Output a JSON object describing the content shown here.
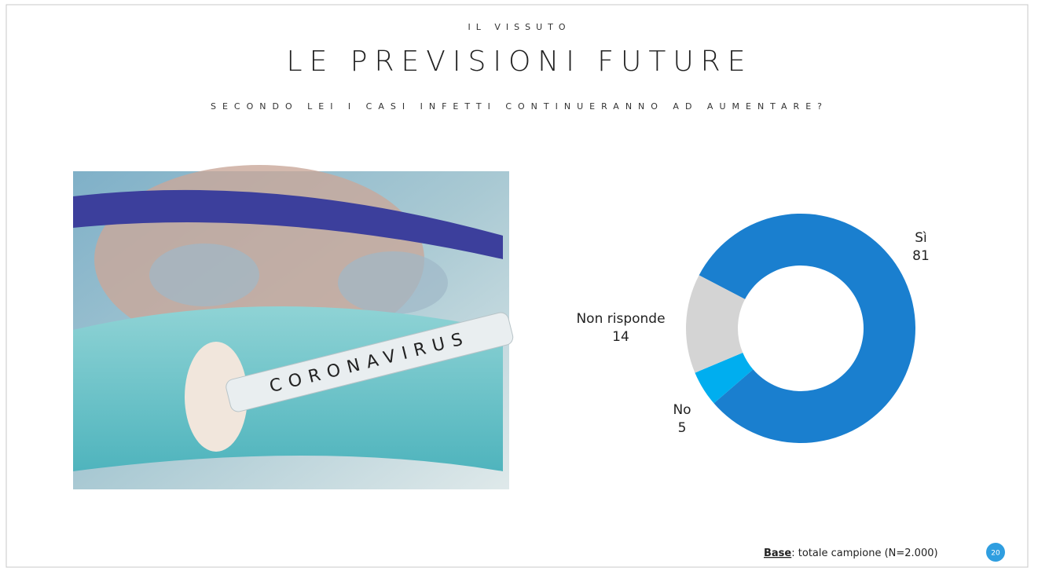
{
  "overline": "IL VISSUTO",
  "photo_text": "CORONAVIRUS",
  "footer": {
    "label": "Base",
    "text": ": totale campione (N=2.000)"
  },
  "page_number": 20,
  "chart_data": {
    "type": "donut",
    "title": "LE PREVISIONI FUTURE",
    "subtitle": "SECONDO LEI I CASI INFETTI CONTINUERANNO AD AUMENTARE?",
    "categories": [
      "Sì",
      "No",
      "Non risponde"
    ],
    "values": [
      81,
      5,
      14
    ],
    "colors": [
      "#1a7fcf",
      "#00aeef",
      "#d4d4d4"
    ]
  }
}
